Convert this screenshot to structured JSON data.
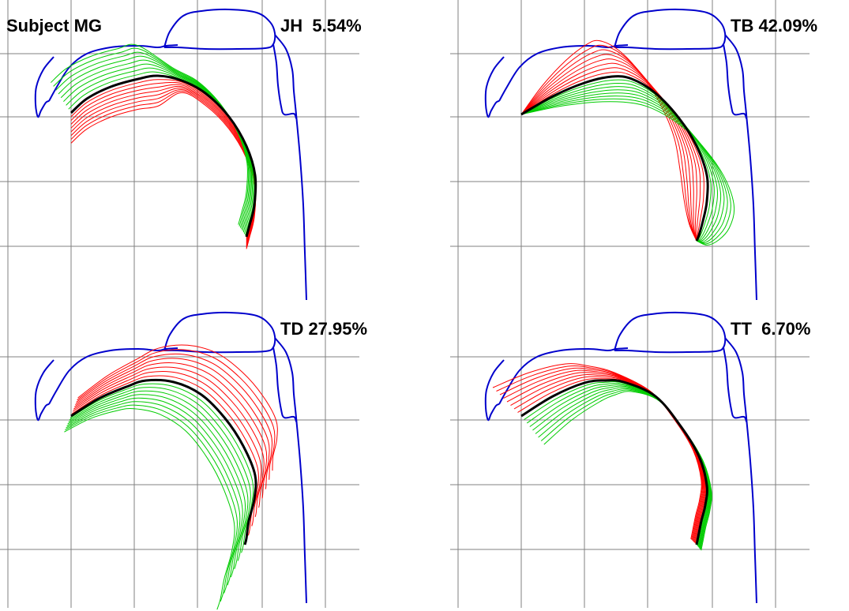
{
  "figure": {
    "subject_label": "Subject MG",
    "panels": [
      {
        "id": "jh",
        "label": "JH  5.54%",
        "factor": "JH",
        "percent": "5.54%"
      },
      {
        "id": "tb",
        "label": "TB 42.09%",
        "factor": "TB",
        "percent": "42.09%"
      },
      {
        "id": "td",
        "label": "TD 27.95%",
        "factor": "TD",
        "percent": "27.95%"
      },
      {
        "id": "tt",
        "label": "TT  6.70%",
        "factor": "TT",
        "percent": "6.70%"
      }
    ],
    "colors": {
      "vocal_tract_outline": "#0000cc",
      "mean_tongue": "#000000",
      "positive_variation": "#ff0000",
      "negative_variation": "#00cc00",
      "grid": "#808080"
    }
  }
}
